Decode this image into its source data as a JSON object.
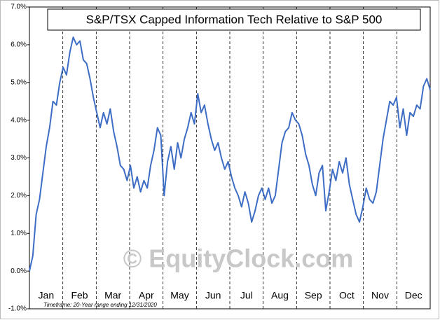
{
  "chart_data": {
    "type": "line",
    "title": "S&P/TSX Capped Information Tech Relative to S&P 500",
    "annotations": [
      "Timeframe: 20-Year range ending 12/31/2020",
      "© EquityClock.com"
    ],
    "month_labels": [
      "Jan",
      "Feb",
      "Mar",
      "Apr",
      "May",
      "Jun",
      "Jul",
      "Aug",
      "Sep",
      "Oct",
      "Nov",
      "Dec"
    ],
    "series": [
      {
        "name": "S&P/TSX Capped Information Tech Relative to S&P 500",
        "color": "#3d6dc4",
        "values": [
          0.0,
          0.4,
          1.5,
          1.9,
          2.6,
          3.3,
          3.8,
          4.5,
          4.4,
          5.0,
          5.4,
          5.2,
          5.8,
          6.2,
          6.0,
          6.1,
          5.6,
          5.5,
          5.1,
          4.6,
          4.2,
          3.8,
          4.2,
          3.9,
          4.3,
          3.7,
          3.3,
          2.8,
          2.7,
          2.4,
          2.8,
          2.2,
          2.5,
          2.1,
          2.4,
          2.2,
          2.8,
          3.2,
          3.8,
          3.6,
          2.0,
          2.9,
          3.3,
          2.7,
          3.4,
          3.0,
          3.5,
          3.8,
          4.2,
          3.9,
          4.7,
          4.2,
          4.4,
          3.9,
          3.5,
          3.2,
          3.4,
          3.0,
          2.7,
          2.9,
          2.5,
          2.2,
          2.0,
          1.7,
          2.1,
          1.8,
          1.3,
          1.6,
          2.0,
          2.2,
          1.9,
          2.2,
          1.8,
          2.0,
          2.7,
          3.4,
          3.7,
          3.8,
          4.2,
          4.0,
          3.9,
          3.6,
          3.1,
          2.8,
          2.3,
          2.0,
          2.6,
          2.8,
          1.6,
          2.1,
          2.7,
          2.4,
          2.9,
          2.6,
          3.0,
          2.3,
          1.9,
          1.5,
          1.3,
          1.7,
          2.2,
          1.9,
          1.8,
          2.1,
          2.8,
          3.5,
          4.0,
          4.5,
          4.4,
          4.6,
          3.8,
          4.3,
          3.6,
          4.2,
          4.1,
          4.4,
          4.3,
          4.9,
          5.1,
          4.8
        ]
      }
    ],
    "ylim": [
      -1,
      7
    ],
    "yticks": [
      {
        "value": -1,
        "label": "-1.0%"
      },
      {
        "value": 0,
        "label": "0.0%"
      },
      {
        "value": 1,
        "label": "1.0%"
      },
      {
        "value": 2,
        "label": "2.0%"
      },
      {
        "value": 3,
        "label": "3.0%"
      },
      {
        "value": 4,
        "label": "4.0%"
      },
      {
        "value": 5,
        "label": "5.0%"
      },
      {
        "value": 6,
        "label": "6.0%"
      },
      {
        "value": 7,
        "label": "7.0%"
      }
    ],
    "grid": false
  }
}
